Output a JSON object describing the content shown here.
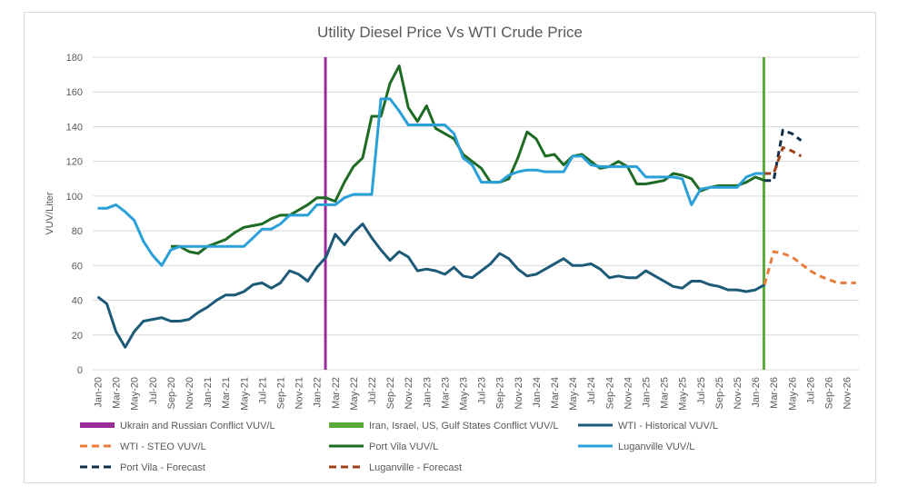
{
  "chart_data": {
    "type": "line",
    "title": "Utility Diesel Price Vs WTI Crude Price",
    "xlabel": "",
    "ylabel": "VUV/Liter",
    "ylim": [
      0,
      180
    ],
    "yticks": [
      0,
      20,
      40,
      60,
      80,
      100,
      120,
      140,
      160,
      180
    ],
    "grid": true,
    "legend_position": "bottom",
    "x": [
      "Jan-20",
      "Feb-20",
      "Mar-20",
      "Apr-20",
      "May-20",
      "Jun-20",
      "Jul-20",
      "Aug-20",
      "Sep-20",
      "Oct-20",
      "Nov-20",
      "Dec-20",
      "Jan-21",
      "Feb-21",
      "Mar-21",
      "Apr-21",
      "May-21",
      "Jun-21",
      "Jul-21",
      "Aug-21",
      "Sep-21",
      "Oct-21",
      "Nov-21",
      "Dec-21",
      "Jan-22",
      "Feb-22",
      "Mar-22",
      "Apr-22",
      "May-22",
      "Jun-22",
      "Jul-22",
      "Aug-22",
      "Sep-22",
      "Oct-22",
      "Nov-22",
      "Dec-22",
      "Jan-23",
      "Feb-23",
      "Mar-23",
      "Apr-23",
      "May-23",
      "Jun-23",
      "Jul-23",
      "Aug-23",
      "Sep-23",
      "Oct-23",
      "Nov-23",
      "Dec-23",
      "Jan-24",
      "Feb-24",
      "Mar-24",
      "Apr-24",
      "May-24",
      "Jun-24",
      "Jul-24",
      "Aug-24",
      "Sep-24",
      "Oct-24",
      "Nov-24",
      "Dec-24",
      "Jan-25",
      "Feb-25",
      "Mar-25",
      "Apr-25",
      "May-25",
      "Jun-25",
      "Jul-25",
      "Aug-25",
      "Sep-25",
      "Oct-25",
      "Nov-25",
      "Dec-25",
      "Jan-26",
      "Feb-26",
      "Mar-26",
      "Apr-26",
      "May-26",
      "Jun-26",
      "Jul-26",
      "Aug-26",
      "Sep-26",
      "Oct-26",
      "Nov-26",
      "Dec-26"
    ],
    "tick_labels": [
      "Jan-20",
      "Mar-20",
      "May-20",
      "Jul-20",
      "Sep-20",
      "Nov-20",
      "Jan-21",
      "Mar-21",
      "May-21",
      "Jul-21",
      "Sep-21",
      "Nov-21",
      "Jan-22",
      "Mar-22",
      "May-22",
      "Jul-22",
      "Sep-22",
      "Nov-22",
      "Jan-23",
      "Mar-23",
      "May-23",
      "Jul-23",
      "Sep-23",
      "Nov-23",
      "Jan-24",
      "Mar-24",
      "May-24",
      "Jul-24",
      "Sep-24",
      "Nov-24",
      "Jan-25",
      "Mar-25",
      "May-25",
      "Jul-25",
      "Sep-25",
      "Nov-25",
      "Jan-26",
      "Mar-26",
      "May-26",
      "Jul-26",
      "Sep-26",
      "Nov-26"
    ],
    "vertical_markers": [
      {
        "name": "Ukrain and Russian Conflict VUV/L",
        "x": "Feb-22",
        "color": "#9b2d9b"
      },
      {
        "name": "Iran, Israel, US, Gulf States Conflict VUV/L",
        "x": "Feb-26",
        "color": "#5aaa3c"
      }
    ],
    "series": [
      {
        "name": "WTI - Historical VUV/L",
        "color": "#1c5a78",
        "dash": false,
        "start": "Jan-20",
        "values": [
          42,
          38,
          22,
          13,
          22,
          28,
          29,
          30,
          28,
          28,
          29,
          33,
          36,
          40,
          43,
          43,
          45,
          49,
          50,
          47,
          50,
          57,
          55,
          51,
          59,
          65,
          78,
          72,
          79,
          84,
          76,
          69,
          63,
          68,
          65,
          57,
          58,
          57,
          55,
          59,
          54,
          53,
          57,
          61,
          67,
          64,
          58,
          54,
          55,
          58,
          61,
          64,
          60,
          60,
          61,
          58,
          53,
          54,
          53,
          53,
          57,
          54,
          51,
          48,
          47,
          51,
          51,
          49,
          48,
          46,
          46,
          45,
          46,
          49
        ]
      },
      {
        "name": "WTI - STEO VUV/L",
        "color": "#e87d3a",
        "dash": true,
        "start": "Feb-26",
        "values": [
          49,
          68,
          67,
          65,
          61,
          57,
          54,
          52,
          50,
          50,
          50
        ]
      },
      {
        "name": "Port Vila VUV/L",
        "color": "#1e6b24",
        "dash": false,
        "start": "Sep-20",
        "values": [
          71,
          71,
          68,
          67,
          71,
          73,
          75,
          79,
          82,
          83,
          84,
          87,
          89,
          89,
          92,
          95,
          99,
          99,
          97,
          108,
          117,
          122,
          146,
          146,
          165,
          175,
          151,
          143,
          152,
          139,
          136,
          133,
          124,
          120,
          116,
          108,
          108,
          110,
          122,
          137,
          133,
          123,
          124,
          118,
          123,
          124,
          120,
          116,
          117,
          120,
          117,
          107,
          107,
          108,
          109,
          113,
          112,
          110,
          103,
          105,
          106,
          106,
          106,
          108,
          111,
          109
        ]
      },
      {
        "name": "Luganville VUV/L",
        "color": "#29a0d8",
        "dash": false,
        "start": "Jan-20",
        "values": [
          93,
          93,
          95,
          91,
          86,
          74,
          66,
          60,
          69,
          71,
          71,
          71,
          71,
          71,
          71,
          71,
          71,
          76,
          81,
          81,
          84,
          89,
          89,
          89,
          95,
          95,
          95,
          99,
          101,
          101,
          101,
          156,
          156,
          149,
          141,
          141,
          141,
          141,
          141,
          136,
          122,
          118,
          108,
          108,
          108,
          112,
          114,
          115,
          115,
          114,
          114,
          114,
          123,
          123,
          118,
          117,
          117,
          117,
          117,
          117,
          111,
          111,
          111,
          111,
          110,
          95,
          104,
          105,
          105,
          105,
          105,
          111,
          113,
          113
        ]
      },
      {
        "name": "Port Vila - Forecast",
        "color": "#13304a",
        "dash": true,
        "start": "Feb-26",
        "values": [
          109,
          109,
          138,
          136,
          132
        ]
      },
      {
        "name": "Luganville - Forecast",
        "color": "#a0401a",
        "dash": true,
        "start": "Feb-26",
        "values": [
          113,
          113,
          128,
          126,
          123
        ]
      }
    ],
    "legend": [
      {
        "label": "Ukrain and Russian Conflict VUV/L",
        "color": "#9b2d9b",
        "style": "bar"
      },
      {
        "label": "Iran, Israel, US, Gulf States Conflict VUV/L",
        "color": "#5aaa3c",
        "style": "bar"
      },
      {
        "label": "WTI - Historical VUV/L",
        "color": "#1c5a78",
        "style": "solid"
      },
      {
        "label": "WTI - STEO VUV/L",
        "color": "#e87d3a",
        "style": "dash"
      },
      {
        "label": "Port Vila VUV/L",
        "color": "#1e6b24",
        "style": "solid"
      },
      {
        "label": "Luganville VUV/L",
        "color": "#29a0d8",
        "style": "solid"
      },
      {
        "label": "Port Vila - Forecast",
        "color": "#13304a",
        "style": "dash"
      },
      {
        "label": "Luganville - Forecast",
        "color": "#a0401a",
        "style": "dash"
      }
    ]
  }
}
